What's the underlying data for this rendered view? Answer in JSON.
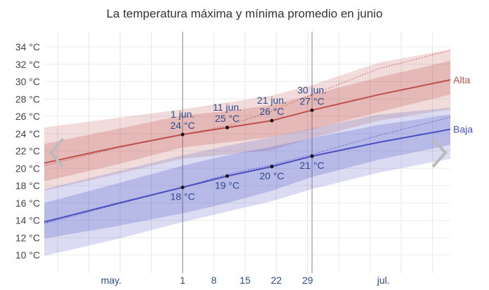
{
  "chart_data": {
    "type": "area",
    "title": "La temperatura máxima y mínima promedio en junio",
    "ylim": [
      9,
      35
    ],
    "xlim_days_from_1_jun": [
      -31,
      60
    ],
    "y_ticks": [
      "10 °C",
      "12 °C",
      "14 °C",
      "16 °C",
      "18 °C",
      "20 °C",
      "22 °C",
      "24 °C",
      "26 °C",
      "28 °C",
      "30 °C",
      "32 °C",
      "34 °C"
    ],
    "y_tick_values": [
      10,
      12,
      14,
      16,
      18,
      20,
      22,
      24,
      26,
      28,
      30,
      32,
      34
    ],
    "x_ticks": [
      {
        "label": "may.",
        "day": -16
      },
      {
        "label": "1",
        "day": 0
      },
      {
        "label": "8",
        "day": 7
      },
      {
        "label": "15",
        "day": 14
      },
      {
        "label": "22",
        "day": 21
      },
      {
        "label": "29",
        "day": 28
      },
      {
        "label": "jul.",
        "day": 45
      }
    ],
    "grid": true,
    "x_days": [
      -31,
      -15,
      0,
      10,
      20,
      29,
      44,
      60
    ],
    "series": [
      {
        "name": "Alta",
        "color": "#c0504d",
        "line": [
          20.6,
          22.4,
          23.9,
          24.7,
          25.5,
          26.7,
          28.5,
          30.2
        ],
        "dotted": [
          20.3,
          22.3,
          23.9,
          24.9,
          26.6,
          28.5,
          31.5,
          33.6
        ],
        "p10": [
          17.4,
          19.3,
          21.1,
          21.6,
          22.1,
          23.5,
          25.5,
          26.8
        ],
        "p25": [
          18.5,
          20.4,
          22.4,
          23.0,
          23.6,
          24.5,
          26.5,
          28.5
        ],
        "p75": [
          22.8,
          24.5,
          26.1,
          26.6,
          27.3,
          28.5,
          30.5,
          32.4
        ],
        "p90": [
          24.7,
          25.8,
          26.8,
          27.6,
          28.4,
          29.6,
          32.2,
          33.7
        ]
      },
      {
        "name": "Baja",
        "color": "#4b4fc2",
        "line": [
          13.8,
          15.9,
          17.8,
          19.1,
          20.2,
          21.4,
          23.0,
          24.5
        ],
        "dotted": [
          13.6,
          15.8,
          17.8,
          19.3,
          20.4,
          21.6,
          23.8,
          25.9
        ],
        "p10": [
          9.9,
          11.8,
          13.8,
          15.0,
          16.2,
          17.6,
          19.5,
          21.1
        ],
        "p25": [
          11.9,
          13.3,
          14.8,
          16.0,
          17.4,
          19.0,
          21.0,
          22.7
        ],
        "p75": [
          16.0,
          18.2,
          20.3,
          21.5,
          22.5,
          23.5,
          25.0,
          26.2
        ],
        "p90": [
          17.6,
          19.6,
          21.5,
          22.6,
          23.6,
          24.6,
          26.2,
          27.0
        ]
      }
    ],
    "highlight_days": [
      0,
      29
    ],
    "annotations": [
      {
        "day": 0,
        "value": 23.9,
        "date": "1 jun.",
        "label": "24 °C",
        "pos": "above"
      },
      {
        "day": 10,
        "value": 24.7,
        "date": "11 jun.",
        "label": "25 °C",
        "pos": "above"
      },
      {
        "day": 20,
        "value": 25.5,
        "date": "21 jun.",
        "label": "26 °C",
        "pos": "above"
      },
      {
        "day": 29,
        "value": 26.7,
        "date": "30 jun.",
        "label": "27 °C",
        "pos": "above"
      },
      {
        "day": 0,
        "value": 17.8,
        "date": "",
        "label": "18 °C",
        "pos": "below"
      },
      {
        "day": 10,
        "value": 19.1,
        "date": "",
        "label": "19 °C",
        "pos": "below"
      },
      {
        "day": 20,
        "value": 20.2,
        "date": "",
        "label": "20 °C",
        "pos": "below"
      },
      {
        "day": 29,
        "value": 21.4,
        "date": "",
        "label": "21 °C",
        "pos": "below"
      }
    ]
  },
  "nav": {
    "prev_icon": "chevron-left-icon",
    "next_icon": "chevron-right-icon"
  }
}
